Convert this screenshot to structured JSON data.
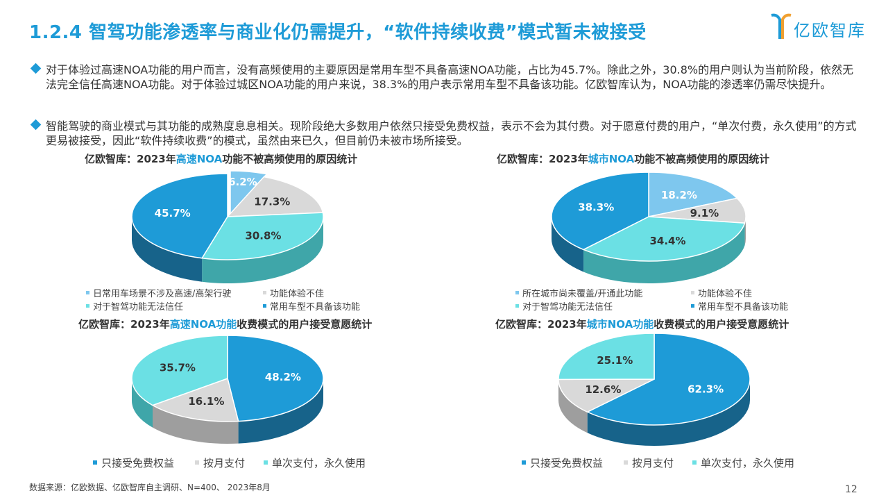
{
  "title": "1.2.4 智驾功能渗透率与商业化仍需提升，“软件持续收费”模式暂未被接受",
  "logo_text": "亿欧智库",
  "bullets": [
    "对于体验过高速NOA功能的用户而言，没有高频使用的主要原因是常用车型不具备高速NOA功能，占比为45.7%。除此之外，30.8%的用户则认为当前阶段，依然无法完全信任高速NOA功能。对于体验过城区NOA功能的用户来说，38.3%的用户表示常用车型不具备该功能。亿欧智库认为，NOA功能的渗透率仍需尽快提升。",
    "智能驾驶的商业模式与其功能的成熟度息息相关。现阶段绝大多数用户依然只接受免费权益，表示不会为其付费。对于愿意付费的用户，“单次付费，永久使用”的方式更易被接受，因此“软件持续收费”的模式，虽然由来已久，但目前仍未被市场所接受。"
  ],
  "colors": {
    "dark_blue": "#1e9bd7",
    "dark_blue_side": "#17638a",
    "cyan": "#6be0e4",
    "cyan_side": "#3fa6a9",
    "light_blue": "#7ec7ee",
    "light_blue_side": "#4c8db1",
    "grey": "#d9d9d9",
    "grey_side": "#9e9e9e"
  },
  "chart_data": [
    {
      "type": "pie",
      "title_pre": "亿欧智库：2023年",
      "title_hl": "高速NOA",
      "title_post": "功能不被高频使用的原因统计",
      "slices": [
        {
          "label": "日常用车场景不涉及高速/高架行驶",
          "value": 6.2,
          "text": "6.2%",
          "color": "light_blue"
        },
        {
          "label": "功能体验不佳",
          "value": 17.3,
          "text": "17.3%",
          "color": "grey"
        },
        {
          "label": "对于智驾功能无法信任",
          "value": 30.8,
          "text": "30.8%",
          "color": "cyan"
        },
        {
          "label": "常用车型不具备该功能",
          "value": 45.7,
          "text": "45.7%",
          "color": "dark_blue"
        }
      ]
    },
    {
      "type": "pie",
      "title_pre": "亿欧智库：2023年",
      "title_hl": "城市NOA",
      "title_post": "功能不被高频使用的原因统计",
      "slices": [
        {
          "label": "所在城市尚未覆盖/开通此功能",
          "value": 18.2,
          "text": "18.2%",
          "color": "light_blue"
        },
        {
          "label": "功能体验不佳",
          "value": 9.1,
          "text": "9.1%",
          "color": "grey"
        },
        {
          "label": "对于智驾功能无法信任",
          "value": 34.4,
          "text": "34.4%",
          "color": "cyan"
        },
        {
          "label": "常用车型不具备该功能",
          "value": 38.3,
          "text": "38.3%",
          "color": "dark_blue"
        }
      ]
    },
    {
      "type": "pie",
      "title_pre": "亿欧智库：2023年",
      "title_hl": "高速NOA功能",
      "title_post": "收费模式的用户接受意愿统计",
      "slices": [
        {
          "label": "只接受免费权益",
          "value": 48.2,
          "text": "48.2%",
          "color": "dark_blue"
        },
        {
          "label": "按月支付",
          "value": 16.1,
          "text": "16.1%",
          "color": "grey"
        },
        {
          "label": "单次支付，永久使用",
          "value": 35.7,
          "text": "35.7%",
          "color": "cyan"
        }
      ]
    },
    {
      "type": "pie",
      "title_pre": "亿欧智库：2023年",
      "title_hl": "城市NOA功能",
      "title_post": "收费模式的用户接受意愿统计",
      "slices": [
        {
          "label": "只接受免费权益",
          "value": 62.3,
          "text": "62.3%",
          "color": "dark_blue"
        },
        {
          "label": "按月支付",
          "value": 12.6,
          "text": "12.6%",
          "color": "grey"
        },
        {
          "label": "单次支付，永久使用",
          "value": 25.1,
          "text": "25.1%",
          "color": "cyan"
        }
      ]
    }
  ],
  "legends": {
    "reasons_highway": [
      "日常用车场景不涉及高速/高架行驶",
      "功能体验不佳",
      "对于智驾功能无法信任",
      "常用车型不具备该功能"
    ],
    "reasons_city": [
      "所在城市尚未覆盖/开通此功能",
      "功能体验不佳",
      "对于智驾功能无法信任",
      "常用车型不具备该功能"
    ],
    "payment": [
      "只接受免费权益",
      "按月支付",
      "单次支付，永久使用"
    ]
  },
  "source": "数据来源：亿欧数据、亿欧智库自主调研、N=400、 2023年8月",
  "page_number": "12"
}
